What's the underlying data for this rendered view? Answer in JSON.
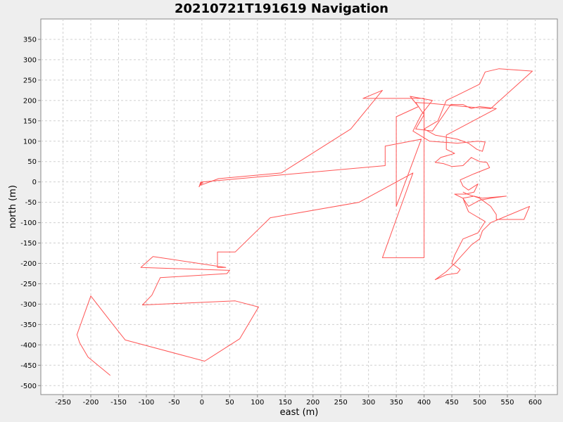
{
  "chart_data": {
    "type": "line",
    "title": "20210721T191619 Navigation",
    "xlabel": "east (m)",
    "ylabel": "north (m)",
    "xlim": [
      -290,
      640
    ],
    "ylim": [
      -522,
      400
    ],
    "x_ticks": [
      -250,
      -200,
      -150,
      -100,
      -50,
      0,
      50,
      100,
      150,
      200,
      250,
      300,
      350,
      400,
      450,
      500,
      550,
      600
    ],
    "y_ticks": [
      350,
      300,
      250,
      200,
      150,
      100,
      50,
      0,
      -50,
      -100,
      -150,
      -200,
      -250,
      -300,
      -350,
      -400,
      -450,
      -500
    ],
    "grid": true,
    "legend": "none",
    "line_color": "#ff5555",
    "series": [
      {
        "points": [
          [
            -165,
            -475
          ],
          [
            -205,
            -430
          ],
          [
            -220,
            -395
          ],
          [
            -225,
            -375
          ],
          [
            -200,
            -280
          ],
          [
            -160,
            -350
          ],
          [
            -138,
            -388
          ],
          [
            5,
            -440
          ],
          [
            68,
            -385
          ],
          [
            102,
            -307
          ],
          [
            60,
            -292
          ],
          [
            -107,
            -302
          ],
          [
            -90,
            -278
          ],
          [
            -75,
            -235
          ],
          [
            45,
            -225
          ],
          [
            50,
            -217
          ],
          [
            -110,
            -210
          ],
          [
            -88,
            -183
          ],
          [
            43,
            -210
          ],
          [
            28,
            -210
          ],
          [
            28,
            -172
          ],
          [
            60,
            -172
          ],
          [
            123,
            -88
          ],
          [
            283,
            -50
          ],
          [
            380,
            22
          ],
          [
            325,
            -186
          ],
          [
            400,
            -186
          ],
          [
            400,
            205
          ],
          [
            290,
            205
          ],
          [
            325,
            225
          ],
          [
            268,
            130
          ],
          [
            143,
            22
          ],
          [
            30,
            8
          ],
          [
            -2,
            -8
          ],
          [
            0,
            0
          ],
          [
            -3,
            -3
          ],
          [
            2,
            -3
          ],
          [
            -2,
            0
          ],
          [
            -5,
            -12
          ],
          [
            0,
            0
          ],
          [
            330,
            40
          ],
          [
            330,
            88
          ],
          [
            395,
            105
          ],
          [
            350,
            -60
          ],
          [
            350,
            160
          ],
          [
            390,
            185
          ],
          [
            375,
            210
          ],
          [
            415,
            200
          ],
          [
            395,
            165
          ],
          [
            380,
            125
          ],
          [
            410,
            100
          ],
          [
            460,
            95
          ],
          [
            497,
            100
          ],
          [
            510,
            98
          ],
          [
            505,
            75
          ],
          [
            495,
            80
          ],
          [
            480,
            95
          ],
          [
            460,
            105
          ],
          [
            420,
            115
          ],
          [
            400,
            130
          ],
          [
            425,
            150
          ],
          [
            440,
            200
          ],
          [
            460,
            213
          ],
          [
            500,
            240
          ],
          [
            510,
            270
          ],
          [
            535,
            278
          ],
          [
            595,
            272
          ],
          [
            520,
            180
          ],
          [
            490,
            183
          ],
          [
            410,
            193
          ],
          [
            385,
            195
          ],
          [
            400,
            165
          ],
          [
            385,
            130
          ],
          [
            415,
            125
          ],
          [
            448,
            190
          ],
          [
            470,
            190
          ],
          [
            485,
            180
          ],
          [
            500,
            185
          ],
          [
            530,
            180
          ],
          [
            440,
            115
          ],
          [
            440,
            80
          ],
          [
            455,
            70
          ],
          [
            430,
            60
          ],
          [
            420,
            48
          ],
          [
            435,
            45
          ],
          [
            450,
            38
          ],
          [
            470,
            40
          ],
          [
            485,
            60
          ],
          [
            500,
            50
          ],
          [
            513,
            48
          ],
          [
            518,
            35
          ],
          [
            490,
            20
          ],
          [
            465,
            5
          ],
          [
            470,
            -10
          ],
          [
            480,
            -20
          ],
          [
            497,
            -5
          ],
          [
            490,
            -25
          ],
          [
            475,
            -30
          ],
          [
            455,
            -30
          ],
          [
            470,
            -40
          ],
          [
            480,
            -60
          ],
          [
            500,
            -45
          ],
          [
            520,
            -40
          ],
          [
            548,
            -35
          ],
          [
            505,
            -40
          ],
          [
            490,
            -35
          ],
          [
            470,
            -40
          ],
          [
            480,
            -73
          ],
          [
            510,
            -97
          ],
          [
            497,
            -125
          ],
          [
            470,
            -140
          ],
          [
            455,
            -180
          ],
          [
            450,
            -200
          ],
          [
            465,
            -215
          ],
          [
            460,
            -224
          ],
          [
            440,
            -228
          ],
          [
            420,
            -240
          ],
          [
            440,
            -220
          ],
          [
            455,
            -200
          ],
          [
            465,
            -185
          ],
          [
            485,
            -155
          ],
          [
            500,
            -140
          ],
          [
            505,
            -120
          ],
          [
            520,
            -100
          ],
          [
            555,
            -80
          ],
          [
            590,
            -60
          ],
          [
            580,
            -92
          ],
          [
            530,
            -92
          ],
          [
            530,
            -80
          ],
          [
            520,
            -60
          ],
          [
            500,
            -40
          ],
          [
            478,
            -30
          ],
          [
            470,
            -25
          ]
        ]
      }
    ]
  }
}
